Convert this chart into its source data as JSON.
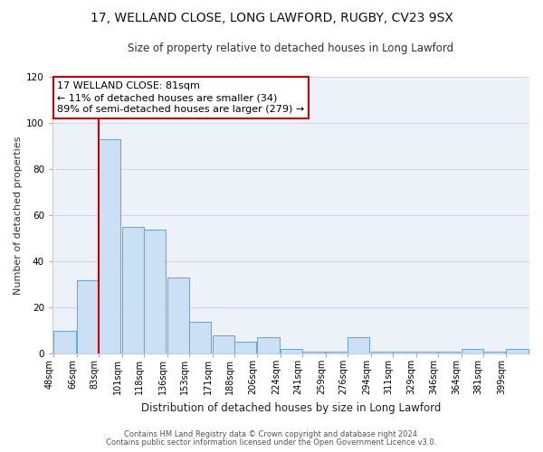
{
  "title": "17, WELLAND CLOSE, LONG LAWFORD, RUGBY, CV23 9SX",
  "subtitle": "Size of property relative to detached houses in Long Lawford",
  "xlabel": "Distribution of detached houses by size in Long Lawford",
  "ylabel": "Number of detached properties",
  "bins": [
    48,
    66,
    83,
    101,
    118,
    136,
    153,
    171,
    188,
    206,
    224,
    241,
    259,
    276,
    294,
    311,
    329,
    346,
    364,
    381,
    399
  ],
  "counts": [
    10,
    32,
    93,
    55,
    54,
    33,
    14,
    8,
    5,
    7,
    2,
    1,
    1,
    7,
    1,
    1,
    1,
    1,
    2,
    1,
    2
  ],
  "bin_width": 17,
  "bar_color": "#cce0f5",
  "bar_edge_color": "#6aaad4",
  "red_line_x": 83,
  "ylim": [
    0,
    120
  ],
  "yticks": [
    0,
    20,
    40,
    60,
    80,
    100,
    120
  ],
  "annotation_line1": "17 WELLAND CLOSE: 81sqm",
  "annotation_line2": "← 11% of detached houses are smaller (34)",
  "annotation_line3": "89% of semi-detached houses are larger (279) →",
  "ann_edge_color": "#cc0000",
  "footnote1": "Contains HM Land Registry data © Crown copyright and database right 2024.",
  "footnote2": "Contains public sector information licensed under the Open Government Licence v3.0.",
  "bg_color": "#edf2f9",
  "grid_color": "#cdd6e8",
  "title_fontsize": 10,
  "subtitle_fontsize": 8.5,
  "ylabel_fontsize": 8,
  "xlabel_fontsize": 8.5,
  "tick_fontsize": 7,
  "ann_fontsize": 8,
  "footnote_fontsize": 6
}
